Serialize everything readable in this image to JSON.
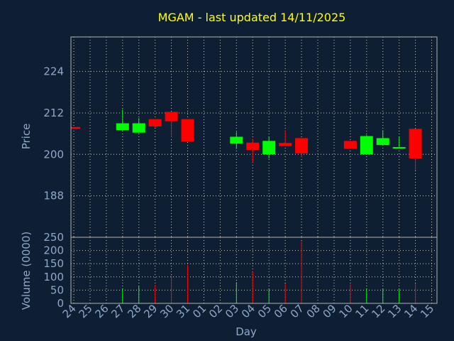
{
  "chart_data": {
    "type": "candlestick",
    "title": "MGAM - last updated 14/11/2025",
    "colors": {
      "background": "#0f1f33",
      "up": "#00ff00",
      "down": "#ff0000",
      "title": "#ffff00",
      "axis_text": "#8fa8c8",
      "grid": "#c8c8c8"
    },
    "x_ticks": [
      "24",
      "25",
      "26",
      "27",
      "28",
      "29",
      "30",
      "31",
      "01",
      "02",
      "03",
      "04",
      "05",
      "06",
      "07",
      "08",
      "09",
      "10",
      "11",
      "12",
      "13",
      "14",
      "15"
    ],
    "xlabel": "Day",
    "price_panel": {
      "ylabel": "Price",
      "ylim": [
        176,
        234
      ],
      "yticks": [
        188,
        200,
        212,
        224
      ],
      "grid": true
    },
    "volume_panel": {
      "ylabel": "Volume (0000)",
      "ylim": [
        0,
        250
      ],
      "yticks": [
        0,
        50,
        100,
        150,
        200,
        250
      ],
      "grid": true
    },
    "candles": [
      {
        "day": "24",
        "open": 207.9,
        "close": 207.4,
        "high": 207.9,
        "low": 207.4,
        "volume": 0
      },
      {
        "day": "27",
        "open": 207.0,
        "close": 209.0,
        "high": 213.0,
        "low": 207.0,
        "volume": 55
      },
      {
        "day": "28",
        "open": 206.3,
        "close": 209.0,
        "high": 210.5,
        "low": 206.3,
        "volume": 65
      },
      {
        "day": "29",
        "open": 210.2,
        "close": 208.1,
        "high": 210.2,
        "low": 207.9,
        "volume": 70
      },
      {
        "day": "30",
        "open": 212.3,
        "close": 209.6,
        "high": 212.3,
        "low": 205.0,
        "volume": 105
      },
      {
        "day": "31",
        "open": 210.2,
        "close": 203.7,
        "high": 210.2,
        "low": 203.7,
        "volume": 145
      },
      {
        "day": "03",
        "open": 203.1,
        "close": 205.1,
        "high": 206.5,
        "low": 201.6,
        "volume": 80
      },
      {
        "day": "04",
        "open": 203.4,
        "close": 201.3,
        "high": 204.5,
        "low": 197.7,
        "volume": 120
      },
      {
        "day": "05",
        "open": 200.0,
        "close": 203.9,
        "high": 205.2,
        "low": 198.8,
        "volume": 55
      },
      {
        "day": "06",
        "open": 203.3,
        "close": 202.4,
        "high": 207.0,
        "low": 202.4,
        "volume": 75
      },
      {
        "day": "07",
        "open": 204.7,
        "close": 200.3,
        "high": 204.7,
        "low": 199.2,
        "volume": 235
      },
      {
        "day": "10",
        "open": 203.9,
        "close": 201.6,
        "high": 203.9,
        "low": 201.6,
        "volume": 72
      },
      {
        "day": "11",
        "open": 200.0,
        "close": 205.3,
        "high": 205.6,
        "low": 200.0,
        "volume": 55
      },
      {
        "day": "12",
        "open": 202.7,
        "close": 204.7,
        "high": 207.0,
        "low": 202.7,
        "volume": 55
      },
      {
        "day": "13",
        "open": 201.8,
        "close": 202.1,
        "high": 205.1,
        "low": 201.8,
        "volume": 55
      },
      {
        "day": "14",
        "open": 207.4,
        "close": 198.8,
        "high": 207.4,
        "low": 195.4,
        "volume": 75
      }
    ]
  }
}
